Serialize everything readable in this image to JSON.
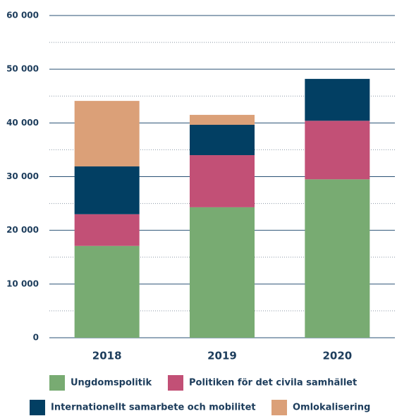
{
  "chart_data": {
    "type": "stacked_bar",
    "categories": [
      "2018",
      "2019",
      "2020"
    ],
    "series": [
      {
        "name": "Ungdomspolitik",
        "color": "#78ab72",
        "values": [
          17100,
          24300,
          29500
        ]
      },
      {
        "name": "Politiken för det civila samhället",
        "color": "#c25076",
        "values": [
          5900,
          9700,
          10900
        ]
      },
      {
        "name": "Internationellt samarbete och mobilitet",
        "color": "#023f63",
        "values": [
          8900,
          5650,
          7800
        ]
      },
      {
        "name": "Omlokalisering",
        "color": "#dba078",
        "values": [
          12200,
          1850,
          0
        ]
      }
    ],
    "ylim": [
      0,
      60000
    ],
    "yticks": [
      0,
      {
        "value": 10000,
        "label": "10 000"
      },
      {
        "value": 20000,
        "label": "20 000"
      },
      {
        "value": 30000,
        "label": "30 000"
      },
      {
        "value": 40000,
        "label": "40 000"
      },
      {
        "value": 50000,
        "label": "50 000"
      },
      {
        "value": 60000,
        "label": "60 000"
      }
    ],
    "minor_yticks": [
      5000,
      15000,
      25000,
      35000,
      45000,
      55000
    ],
    "grid": true
  }
}
